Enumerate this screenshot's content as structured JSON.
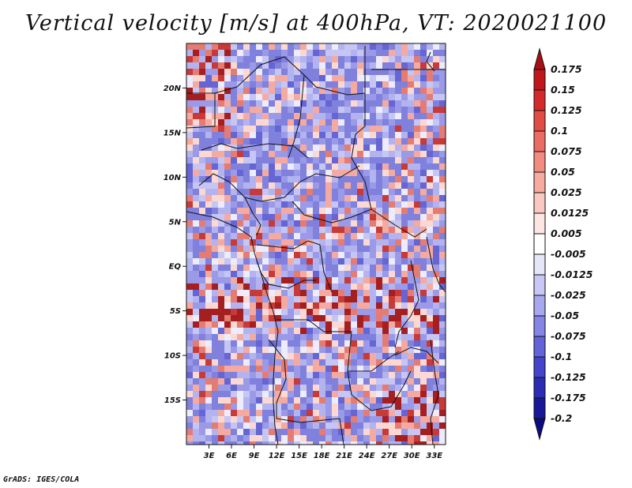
{
  "title": "Vertical velocity [m/s] at 400hPa, VT: 2020021100",
  "credit": "GrADS: IGES/COLA",
  "lat_ticks": [
    "20N",
    "15N",
    "10N",
    "5N",
    "EQ",
    "5S",
    "10S",
    "15S"
  ],
  "lon_ticks": [
    "3E",
    "6E",
    "9E",
    "12E",
    "15E",
    "18E",
    "21E",
    "24E",
    "27E",
    "30E",
    "33E"
  ],
  "colorbar": {
    "labels": [
      "0.175",
      "0.15",
      "0.125",
      "0.1",
      "0.075",
      "0.05",
      "0.025",
      "0.0125",
      "0.005",
      "-0.005",
      "-0.0125",
      "-0.025",
      "-0.05",
      "-0.075",
      "-0.1",
      "-0.125",
      "-0.175",
      "-0.2"
    ],
    "colors": [
      "#a50f15",
      "#c0161c",
      "#d62a2a",
      "#e34b45",
      "#ec6b62",
      "#f28b80",
      "#f6aaa0",
      "#f9c8c0",
      "#fde6e1",
      "#ffffff",
      "#e6e6fb",
      "#c8c8f6",
      "#a8a8ef",
      "#8585e6",
      "#6363dc",
      "#4444cc",
      "#2b2bb4",
      "#181899",
      "#0b0b80"
    ]
  },
  "map": {
    "lon_range": [
      0,
      34.5
    ],
    "lat_range": [
      -20,
      25
    ],
    "field_palette": [
      "#9a9ae8",
      "#8080dd",
      "#b3b3f0",
      "#6565d4",
      "#c6c6f5",
      "#ececfc",
      "#fbd8d2",
      "#f4aaa0",
      "#e57c74",
      "#c73a38",
      "#a51e20"
    ]
  }
}
